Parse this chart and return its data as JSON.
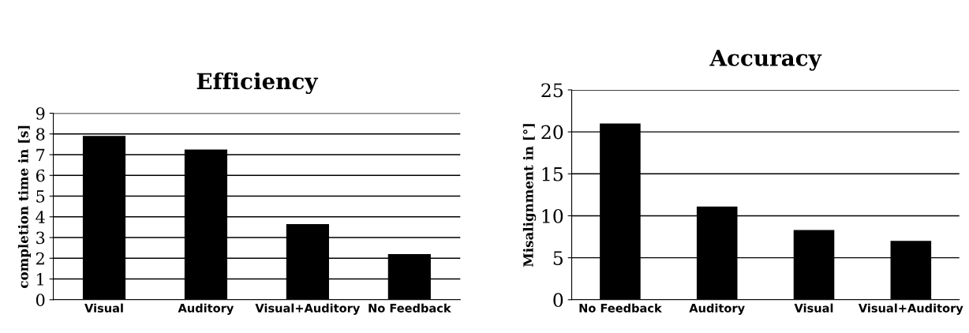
{
  "chart_data": [
    {
      "type": "bar",
      "title": "Efficiency",
      "ylabel": "completion time in [s]",
      "categories": [
        "Visual",
        "Auditory",
        "Visual+Auditory",
        "No Feedback"
      ],
      "values": [
        7.9,
        7.25,
        3.65,
        2.2
      ],
      "color": "#000000",
      "ylim": [
        0,
        9
      ],
      "yticks": [
        0,
        1,
        2,
        3,
        4,
        5,
        6,
        7,
        8,
        9
      ],
      "grid": "y"
    },
    {
      "type": "bar",
      "title": "Accuracy",
      "ylabel": "Misalignment in [°]",
      "categories": [
        "No Feedback",
        "Auditory",
        "Visual",
        "Visual+Auditory"
      ],
      "values": [
        21,
        11.1,
        8.3,
        7.0
      ],
      "color": "#000000",
      "ylim": [
        0,
        25
      ],
      "yticks": [
        0,
        5,
        10,
        15,
        20,
        25
      ],
      "grid": "y"
    }
  ]
}
